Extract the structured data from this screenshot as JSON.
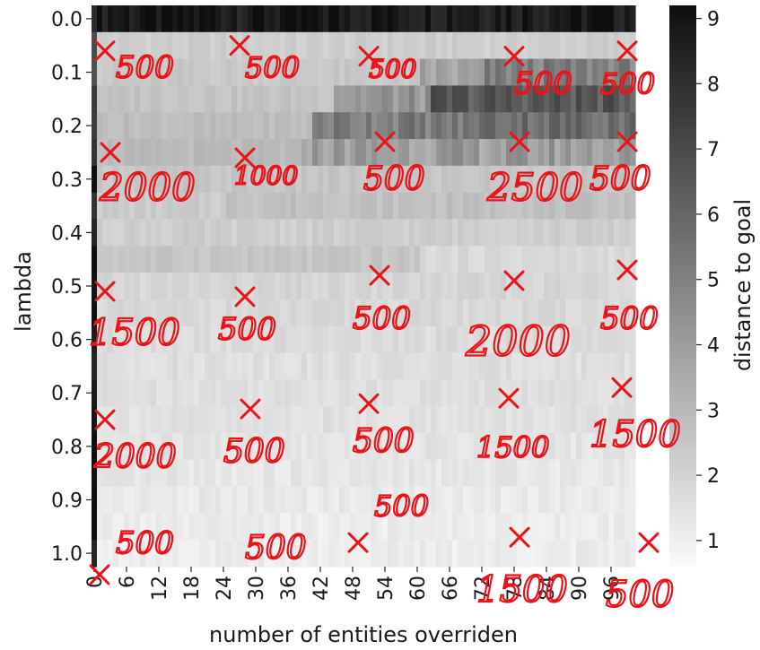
{
  "chart_data": {
    "type": "heatmap",
    "title": "",
    "xlabel": "number of entities overriden",
    "ylabel": "lambda",
    "colorbar_label": "distance to goal",
    "colormap": "Greys",
    "x_tick_labels": [
      "0",
      "6",
      "12",
      "18",
      "24",
      "30",
      "36",
      "42",
      "48",
      "54",
      "60",
      "66",
      "72",
      "78",
      "84",
      "90",
      "96"
    ],
    "y_tick_labels": [
      "0.0",
      "0.1",
      "0.2",
      "0.3",
      "0.4",
      "0.5",
      "0.6",
      "0.7",
      "0.8",
      "0.9",
      "1.0"
    ],
    "colorbar_ticks": [
      1,
      2,
      3,
      4,
      5,
      6,
      7,
      8,
      9
    ],
    "colorbar_range": [
      0.6,
      9.2
    ],
    "n_x": 101,
    "n_y": 21,
    "rows": [
      {
        "lambda": "0.0",
        "bands": [
          [
            0,
            100,
            8.9
          ]
        ]
      },
      {
        "lambda": "0.05",
        "bands": [
          [
            0,
            0,
            7.5
          ],
          [
            1,
            100,
            2.2
          ]
        ]
      },
      {
        "lambda": "0.1",
        "bands": [
          [
            0,
            0,
            7.5
          ],
          [
            1,
            60,
            2.4
          ],
          [
            61,
            72,
            3.6
          ],
          [
            73,
            100,
            5.0
          ]
        ]
      },
      {
        "lambda": "0.15",
        "bands": [
          [
            0,
            0,
            8.0
          ],
          [
            1,
            44,
            2.6
          ],
          [
            45,
            62,
            4.2
          ],
          [
            63,
            100,
            6.5
          ]
        ]
      },
      {
        "lambda": "0.2",
        "bands": [
          [
            0,
            0,
            8.0
          ],
          [
            1,
            40,
            2.8
          ],
          [
            41,
            70,
            5.2
          ],
          [
            71,
            100,
            5.8
          ]
        ]
      },
      {
        "lambda": "0.25",
        "bands": [
          [
            0,
            0,
            8.5
          ],
          [
            1,
            38,
            2.9
          ],
          [
            39,
            100,
            4.0
          ]
        ]
      },
      {
        "lambda": "0.3",
        "bands": [
          [
            0,
            0,
            8.5
          ],
          [
            1,
            100,
            2.5
          ]
        ]
      },
      {
        "lambda": "0.35",
        "bands": [
          [
            0,
            0,
            8.5
          ],
          [
            1,
            24,
            2.3
          ],
          [
            25,
            100,
            2.7
          ]
        ]
      },
      {
        "lambda": "0.4",
        "bands": [
          [
            0,
            0,
            8.7
          ],
          [
            1,
            100,
            2.2
          ]
        ]
      },
      {
        "lambda": "0.45",
        "bands": [
          [
            0,
            0,
            8.7
          ],
          [
            1,
            60,
            2.5
          ],
          [
            61,
            100,
            1.8
          ]
        ]
      },
      {
        "lambda": "0.5",
        "bands": [
          [
            0,
            0,
            8.7
          ],
          [
            1,
            100,
            1.9
          ]
        ]
      },
      {
        "lambda": "0.55",
        "bands": [
          [
            0,
            0,
            8.7
          ],
          [
            1,
            100,
            1.8
          ]
        ]
      },
      {
        "lambda": "0.6",
        "bands": [
          [
            0,
            0,
            8.7
          ],
          [
            1,
            100,
            1.7
          ]
        ]
      },
      {
        "lambda": "0.65",
        "bands": [
          [
            0,
            0,
            8.7
          ],
          [
            1,
            100,
            1.6
          ]
        ]
      },
      {
        "lambda": "0.7",
        "bands": [
          [
            0,
            0,
            8.8
          ],
          [
            1,
            100,
            1.6
          ]
        ]
      },
      {
        "lambda": "0.75",
        "bands": [
          [
            0,
            0,
            8.8
          ],
          [
            1,
            100,
            1.5
          ]
        ]
      },
      {
        "lambda": "0.8",
        "bands": [
          [
            0,
            0,
            8.8
          ],
          [
            1,
            100,
            1.4
          ]
        ]
      },
      {
        "lambda": "0.85",
        "bands": [
          [
            0,
            0,
            8.8
          ],
          [
            1,
            100,
            1.3
          ]
        ]
      },
      {
        "lambda": "0.9",
        "bands": [
          [
            0,
            0,
            8.8
          ],
          [
            1,
            100,
            1.2
          ]
        ]
      },
      {
        "lambda": "0.95",
        "bands": [
          [
            0,
            0,
            8.8
          ],
          [
            1,
            100,
            1.1
          ]
        ]
      },
      {
        "lambda": "1.0",
        "bands": [
          [
            0,
            0,
            8.8
          ],
          [
            1,
            100,
            1.1
          ]
        ]
      }
    ]
  },
  "annotations": [
    {
      "text": "500",
      "x": 4,
      "y": 0.11,
      "size": 34
    },
    {
      "text": "500",
      "x": 28,
      "y": 0.11,
      "size": 32
    },
    {
      "text": "500",
      "x": 51,
      "y": 0.11,
      "size": 28
    },
    {
      "text": "500",
      "x": 78,
      "y": 0.14,
      "size": 34
    },
    {
      "text": "500",
      "x": 94,
      "y": 0.14,
      "size": 32
    },
    {
      "text": "2000",
      "x": 1,
      "y": 0.34,
      "size": 42
    },
    {
      "text": "1000",
      "x": 26,
      "y": 0.31,
      "size": 28
    },
    {
      "text": "500",
      "x": 50,
      "y": 0.32,
      "size": 36
    },
    {
      "text": "2500",
      "x": 73,
      "y": 0.34,
      "size": 42
    },
    {
      "text": "500",
      "x": 92,
      "y": 0.32,
      "size": 36
    },
    {
      "text": "1500",
      "x": -1,
      "y": 0.61,
      "size": 40
    },
    {
      "text": "500",
      "x": 23,
      "y": 0.6,
      "size": 34
    },
    {
      "text": "500",
      "x": 48,
      "y": 0.58,
      "size": 34
    },
    {
      "text": "2000",
      "x": 69,
      "y": 0.63,
      "size": 46
    },
    {
      "text": "500",
      "x": 94,
      "y": 0.58,
      "size": 34
    },
    {
      "text": "2000",
      "x": 0,
      "y": 0.84,
      "size": 36
    },
    {
      "text": "500",
      "x": 24,
      "y": 0.83,
      "size": 36
    },
    {
      "text": "500",
      "x": 48,
      "y": 0.81,
      "size": 36
    },
    {
      "text": "1500",
      "x": 71,
      "y": 0.82,
      "size": 32
    },
    {
      "text": "1500",
      "x": 92,
      "y": 0.8,
      "size": 40
    },
    {
      "text": "500",
      "x": 52,
      "y": 0.93,
      "size": 32
    },
    {
      "text": "500",
      "x": 4,
      "y": 1.0,
      "size": 34
    },
    {
      "text": "500",
      "x": 28,
      "y": 1.01,
      "size": 36
    },
    {
      "text": "1500",
      "x": 71,
      "y": 1.09,
      "size": 40
    },
    {
      "text": "500",
      "x": 95,
      "y": 1.1,
      "size": 40
    }
  ],
  "ink_marks": [
    {
      "x": 2,
      "y": 0.06
    },
    {
      "x": 27,
      "y": 0.05
    },
    {
      "x": 51,
      "y": 0.07
    },
    {
      "x": 78,
      "y": 0.07
    },
    {
      "x": 99,
      "y": 0.06
    },
    {
      "x": 3,
      "y": 0.25
    },
    {
      "x": 28,
      "y": 0.26
    },
    {
      "x": 54,
      "y": 0.23
    },
    {
      "x": 79,
      "y": 0.23
    },
    {
      "x": 99,
      "y": 0.23
    },
    {
      "x": 2,
      "y": 0.51
    },
    {
      "x": 28,
      "y": 0.52
    },
    {
      "x": 53,
      "y": 0.48
    },
    {
      "x": 78,
      "y": 0.49
    },
    {
      "x": 99,
      "y": 0.47
    },
    {
      "x": 2,
      "y": 0.75
    },
    {
      "x": 29,
      "y": 0.73
    },
    {
      "x": 51,
      "y": 0.72
    },
    {
      "x": 77,
      "y": 0.71
    },
    {
      "x": 98,
      "y": 0.69
    },
    {
      "x": 49,
      "y": 0.98
    },
    {
      "x": 79,
      "y": 0.97
    },
    {
      "x": 103,
      "y": 0.98
    },
    {
      "x": 1,
      "y": 1.04
    }
  ]
}
